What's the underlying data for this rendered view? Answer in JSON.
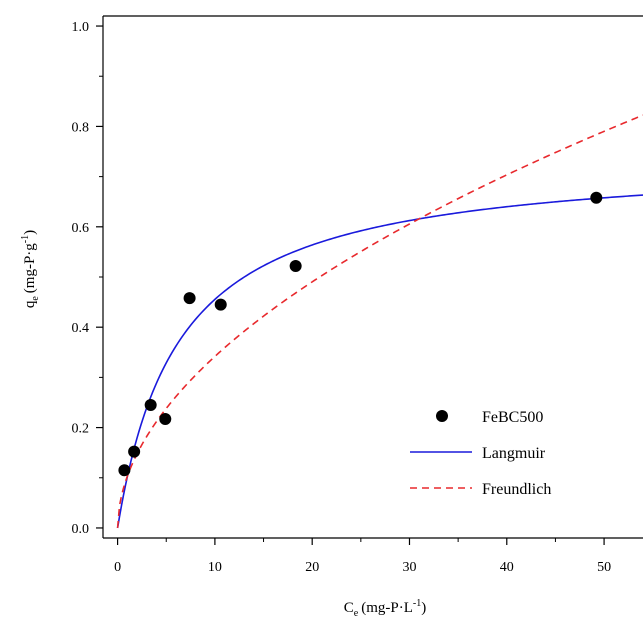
{
  "chart_data": {
    "type": "scatter",
    "title": "",
    "xlabel": {
      "main": "C",
      "sub": "e",
      "unit": "(mg-P·L",
      "sup": "-1",
      "close": ")"
    },
    "ylabel": {
      "main": "q",
      "sub": "e",
      "unit": "(mg-P·g",
      "sup": "-1",
      "close": ")"
    },
    "xlim": [
      -1.5,
      54
    ],
    "ylim": [
      -0.02,
      1.02
    ],
    "xticks": [
      0,
      10,
      20,
      30,
      40,
      50
    ],
    "yticks": [
      0.0,
      0.2,
      0.4,
      0.6,
      0.8,
      1.0
    ],
    "ytick_labels": [
      "0.0",
      "0.2",
      "0.4",
      "0.6",
      "0.8",
      "1.0"
    ],
    "grid": false,
    "legend_position": "lower-right",
    "series": [
      {
        "name": "FeBC500",
        "kind": "scatter",
        "color": "#000000",
        "points": [
          {
            "x": 0.7,
            "y": 0.115
          },
          {
            "x": 1.7,
            "y": 0.152
          },
          {
            "x": 3.4,
            "y": 0.245
          },
          {
            "x": 4.9,
            "y": 0.217
          },
          {
            "x": 7.4,
            "y": 0.458
          },
          {
            "x": 10.6,
            "y": 0.445
          },
          {
            "x": 18.3,
            "y": 0.522
          },
          {
            "x": 49.2,
            "y": 0.658
          }
        ]
      },
      {
        "name": "Langmuir",
        "kind": "curve",
        "model": "langmuir",
        "qmax": 0.74,
        "K": 0.16,
        "color": "#1a1adc",
        "dash": "solid"
      },
      {
        "name": "Freundlich",
        "kind": "curve",
        "model": "freundlich",
        "Kf": 0.103,
        "n": 1.92,
        "color": "#e8292d",
        "dash": "dashed"
      }
    ]
  }
}
